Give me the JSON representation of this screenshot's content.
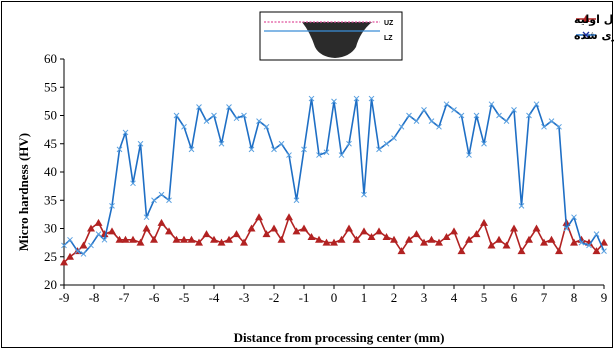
{
  "chart_data": {
    "type": "line",
    "xlabel": "Distance from processing center (mm)",
    "ylabel": "Micro hardness (HV)",
    "xlim": [
      -9,
      9
    ],
    "ylim": [
      20,
      60
    ],
    "xticks": [
      -9,
      -8,
      -7,
      -6,
      -5,
      -4,
      -3,
      -2,
      -1,
      0,
      1,
      2,
      3,
      4,
      5,
      6,
      7,
      8,
      9
    ],
    "yticks": [
      20,
      25,
      30,
      35,
      40,
      45,
      50,
      55,
      60
    ],
    "grid": false,
    "legend_position": "top-right",
    "series": [
      {
        "name": "اتصال اولیه",
        "color": "#b22222",
        "marker": "triangle",
        "x": [
          -9.0,
          -8.8,
          -8.55,
          -8.35,
          -8.1,
          -7.85,
          -7.65,
          -7.4,
          -7.15,
          -6.95,
          -6.7,
          -6.45,
          -6.25,
          -6.0,
          -5.75,
          -5.5,
          -5.25,
          -5.0,
          -4.75,
          -4.5,
          -4.25,
          -4.0,
          -3.75,
          -3.5,
          -3.25,
          -3.0,
          -2.75,
          -2.5,
          -2.25,
          -2.0,
          -1.75,
          -1.5,
          -1.25,
          -1.0,
          -0.75,
          -0.5,
          -0.25,
          0.0,
          0.25,
          0.5,
          0.75,
          1.0,
          1.25,
          1.5,
          1.75,
          2.0,
          2.25,
          2.5,
          2.75,
          3.0,
          3.25,
          3.5,
          3.75,
          4.0,
          4.25,
          4.5,
          4.75,
          5.0,
          5.25,
          5.5,
          5.75,
          6.0,
          6.25,
          6.5,
          6.75,
          7.0,
          7.25,
          7.5,
          7.75,
          8.0,
          8.25,
          8.5,
          8.75,
          9.0
        ],
        "y": [
          24,
          25,
          26,
          27,
          30,
          31,
          29,
          29.5,
          28,
          28,
          28,
          27.5,
          30,
          28,
          31,
          29.5,
          28,
          28,
          28,
          27.5,
          29,
          28,
          27.5,
          28,
          29,
          27.5,
          30,
          32,
          29,
          30,
          28,
          32,
          29.5,
          30,
          28.5,
          28,
          27.5,
          27.5,
          28,
          30,
          28,
          29.5,
          28.5,
          29.5,
          28.5,
          28,
          26,
          28,
          29,
          27.5,
          28,
          27.5,
          28.5,
          29.5,
          26,
          28,
          29,
          31,
          27,
          28,
          27,
          30,
          26,
          28,
          30,
          27.5,
          28,
          26,
          31,
          27.5,
          28,
          27.5,
          26,
          27.5
        ]
      },
      {
        "name": "اتصال فرآوری شده",
        "color": "#1f6fc5",
        "marker": "x",
        "x": [
          -9.0,
          -8.8,
          -8.55,
          -8.35,
          -8.1,
          -7.85,
          -7.65,
          -7.4,
          -7.15,
          -6.95,
          -6.7,
          -6.45,
          -6.25,
          -6.0,
          -5.75,
          -5.5,
          -5.25,
          -5.0,
          -4.75,
          -4.5,
          -4.25,
          -4.0,
          -3.75,
          -3.5,
          -3.25,
          -3.0,
          -2.75,
          -2.5,
          -2.25,
          -2.0,
          -1.75,
          -1.5,
          -1.25,
          -1.0,
          -0.75,
          -0.5,
          -0.25,
          0.0,
          0.25,
          0.5,
          0.75,
          1.0,
          1.25,
          1.5,
          1.75,
          2.0,
          2.25,
          2.5,
          2.75,
          3.0,
          3.25,
          3.5,
          3.75,
          4.0,
          4.25,
          4.5,
          4.75,
          5.0,
          5.25,
          5.5,
          5.75,
          6.0,
          6.25,
          6.5,
          6.75,
          7.0,
          7.25,
          7.5,
          7.75,
          8.0,
          8.25,
          8.5,
          8.75,
          9.0
        ],
        "y": [
          27,
          28,
          26,
          25.5,
          27,
          29,
          28,
          34,
          44,
          47,
          38,
          45,
          32,
          35,
          36,
          35,
          50,
          48,
          44,
          51.5,
          49,
          50,
          45,
          51.5,
          49.5,
          50,
          44,
          49,
          48,
          44,
          45,
          43,
          35,
          44,
          53,
          43,
          43.5,
          52.5,
          43,
          45,
          53,
          36,
          53,
          44,
          45,
          46,
          48,
          50,
          49,
          51,
          49,
          48,
          52,
          51,
          50,
          43,
          50,
          45,
          52,
          50,
          49,
          51,
          34,
          50,
          52,
          48,
          49,
          48,
          30,
          32,
          27.5,
          27,
          29,
          26
        ]
      }
    ],
    "inset_labels": [
      "UZ",
      "LZ"
    ]
  }
}
